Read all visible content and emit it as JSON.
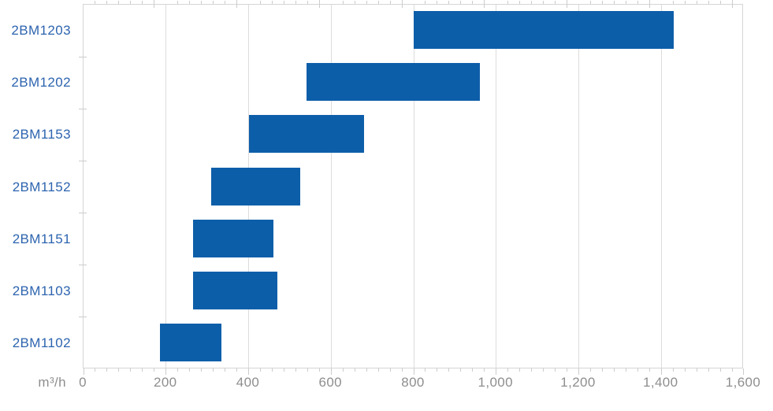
{
  "chart_data": {
    "type": "bar",
    "subtype": "horizontal-range-bar",
    "title": "",
    "unit_label": "m³/h",
    "categories": [
      "2BM1203",
      "2BM1202",
      "2BM1153",
      "2BM1152",
      "2BM1151",
      "2BM1103",
      "2BM1102"
    ],
    "ranges": [
      [
        800,
        1430
      ],
      [
        540,
        960
      ],
      [
        400,
        680
      ],
      [
        310,
        525
      ],
      [
        265,
        460
      ],
      [
        265,
        470
      ],
      [
        185,
        335
      ]
    ],
    "xlabel": "m³/h",
    "ylabel": "",
    "xlim": [
      0,
      1600
    ],
    "x_tick_interval": 200,
    "x_tick_labels": [
      "0",
      "200",
      "400",
      "600",
      "800",
      "1,000",
      "1,200",
      "1,400",
      "1,600"
    ],
    "grid": "vertical-only",
    "legend": "none",
    "colors": {
      "bar": "#0d5ea9",
      "category_label": "#2d64af",
      "grid_line": "#dcdcdc",
      "plot_border": "#d5d5d5",
      "tick_mark": "#cccccc",
      "tick_label": "#8e8e8e",
      "background": "#ffffff"
    }
  }
}
